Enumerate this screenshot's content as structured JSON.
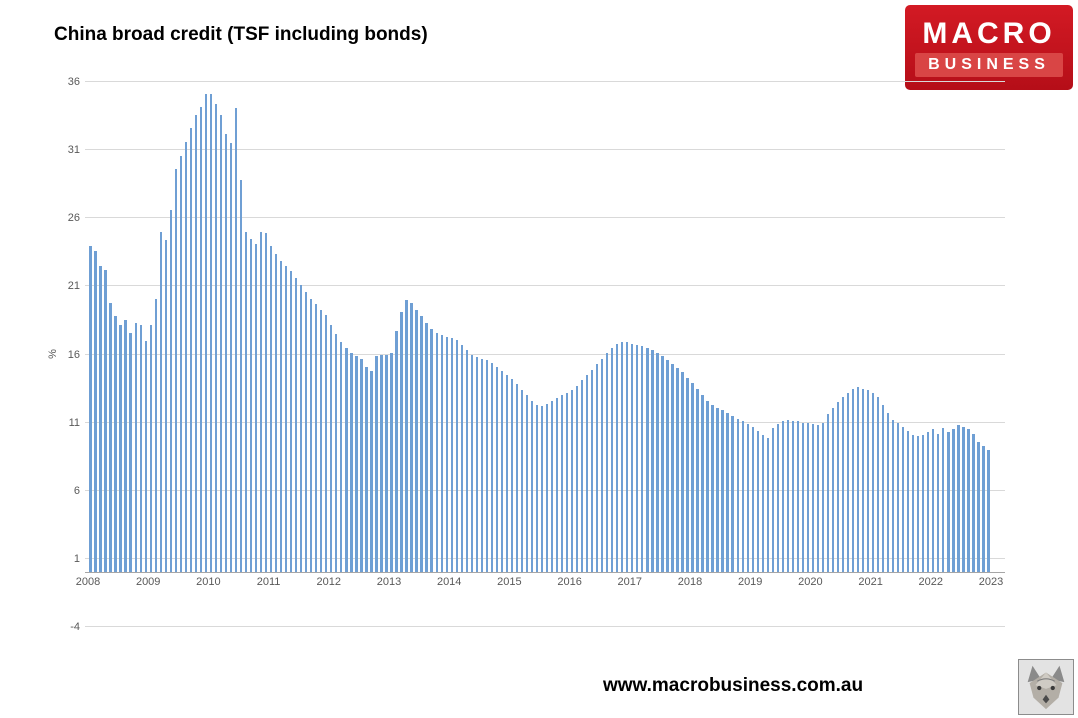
{
  "header": {
    "title": "China broad credit (TSF including bonds)"
  },
  "logo": {
    "line1": "MACRO",
    "line2": "BUSINESS",
    "bg_color": "#c1121c",
    "strip_color": "#d94545",
    "text_color": "#ffffff"
  },
  "footer": {
    "url": "www.macrobusiness.com.au"
  },
  "chart_data": {
    "type": "bar",
    "title": "China broad credit (TSF including bonds)",
    "xlabel": "",
    "ylabel": "%",
    "ylim": [
      -4,
      36
    ],
    "yticks": [
      -4,
      1,
      6,
      11,
      16,
      21,
      26,
      31,
      36
    ],
    "grid": true,
    "legend": false,
    "bar_color": "#6f9fd4",
    "frequency": "monthly",
    "x_start": "2008-01",
    "xticks": [
      "2008",
      "2009",
      "2010",
      "2011",
      "2012",
      "2013",
      "2014",
      "2015",
      "2016",
      "2017",
      "2018",
      "2019",
      "2020",
      "2021",
      "2022",
      "2023"
    ],
    "values": [
      24.0,
      23.6,
      22.5,
      22.2,
      19.8,
      18.8,
      18.2,
      18.5,
      17.6,
      18.3,
      18.2,
      17.0,
      18.2,
      20.1,
      25.0,
      24.4,
      26.6,
      29.6,
      30.6,
      31.6,
      32.6,
      33.6,
      34.2,
      35.1,
      35.1,
      34.4,
      33.6,
      32.2,
      31.5,
      34.1,
      28.8,
      25.0,
      24.5,
      24.1,
      25.0,
      24.9,
      24.0,
      23.4,
      22.9,
      22.5,
      22.1,
      21.6,
      21.1,
      20.6,
      20.1,
      19.7,
      19.3,
      18.9,
      18.2,
      17.5,
      16.9,
      16.5,
      16.1,
      15.9,
      15.7,
      15.1,
      14.8,
      15.9,
      16.0,
      16.0,
      16.1,
      17.7,
      19.1,
      20.0,
      19.8,
      19.3,
      18.8,
      18.3,
      17.9,
      17.6,
      17.4,
      17.3,
      17.2,
      17.1,
      16.7,
      16.3,
      16.0,
      15.8,
      15.7,
      15.6,
      15.4,
      15.1,
      14.8,
      14.5,
      14.2,
      13.8,
      13.4,
      13.0,
      12.6,
      12.3,
      12.2,
      12.4,
      12.6,
      12.8,
      13.0,
      13.2,
      13.4,
      13.7,
      14.1,
      14.5,
      14.9,
      15.3,
      15.7,
      16.1,
      16.5,
      16.8,
      16.9,
      16.9,
      16.8,
      16.7,
      16.6,
      16.5,
      16.3,
      16.1,
      15.9,
      15.6,
      15.3,
      15.0,
      14.7,
      14.3,
      13.9,
      13.5,
      13.0,
      12.6,
      12.3,
      12.1,
      11.9,
      11.7,
      11.5,
      11.3,
      11.1,
      10.9,
      10.7,
      10.4,
      10.1,
      9.9,
      10.6,
      10.9,
      11.1,
      11.2,
      11.1,
      11.1,
      11.0,
      11.0,
      10.9,
      10.8,
      11.0,
      11.6,
      12.1,
      12.5,
      12.9,
      13.2,
      13.5,
      13.6,
      13.5,
      13.4,
      13.2,
      12.9,
      12.3,
      11.7,
      11.2,
      11.0,
      10.7,
      10.4,
      10.1,
      10.0,
      10.1,
      10.3,
      10.5,
      10.2,
      10.6,
      10.3,
      10.5,
      10.8,
      10.7,
      10.5,
      10.2,
      9.6,
      9.3,
      9.0
    ]
  }
}
